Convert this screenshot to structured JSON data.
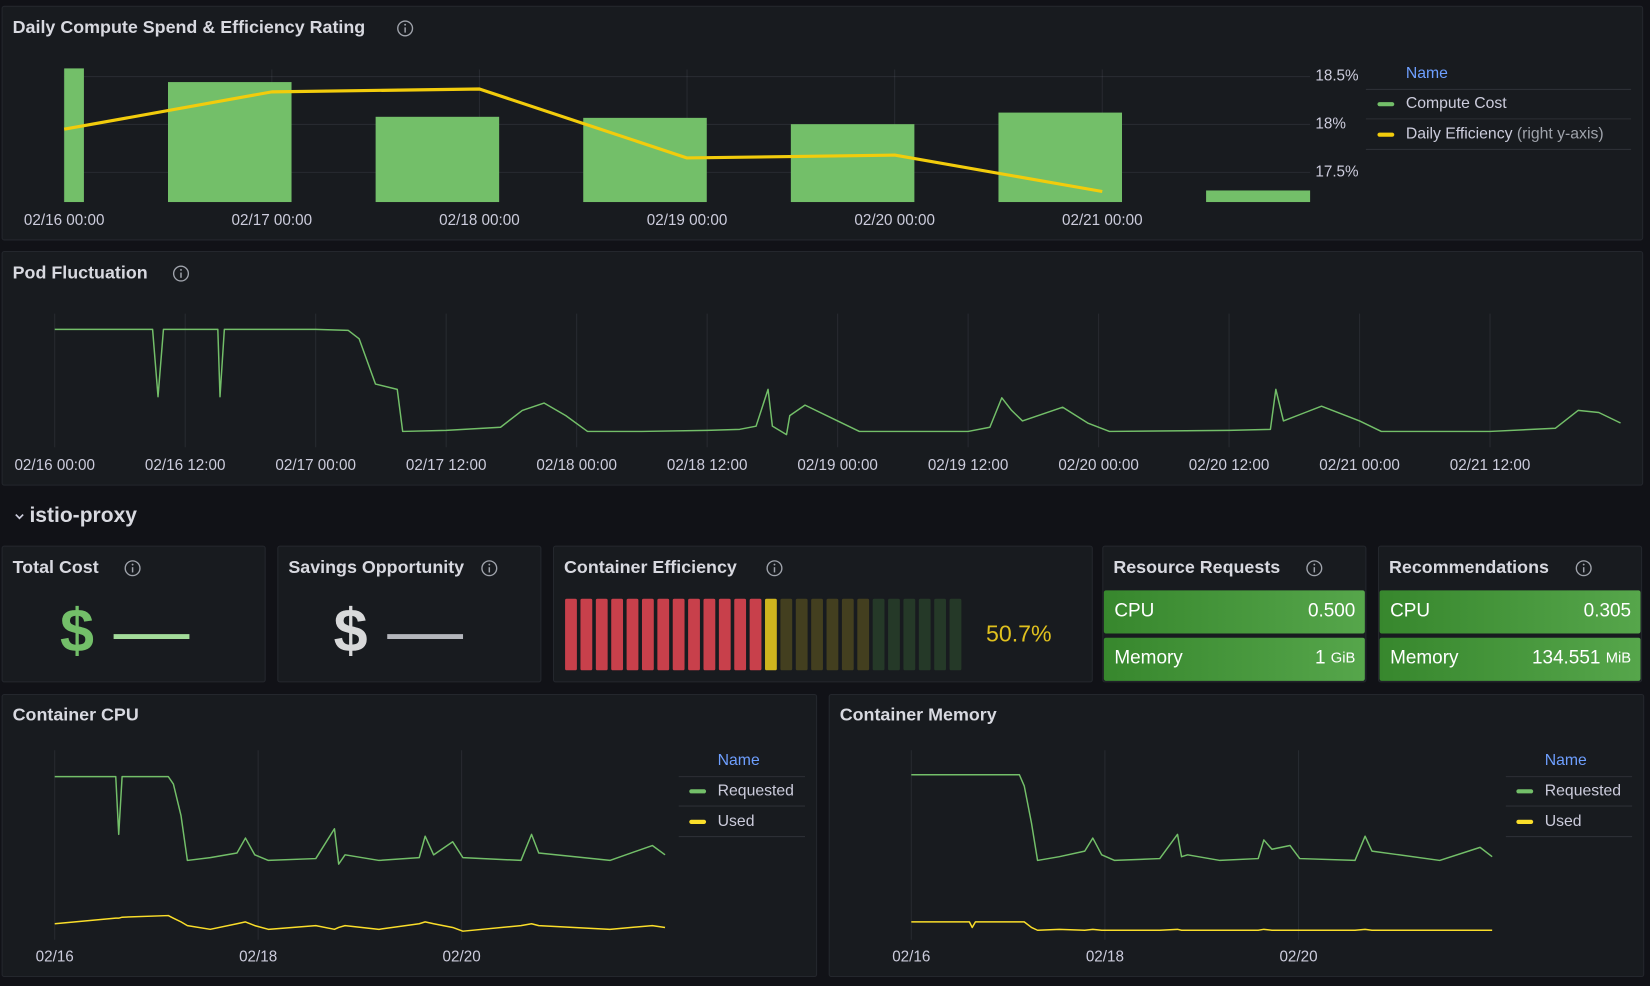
{
  "chart_data": [
    {
      "type": "bar",
      "title": "Daily Compute Spend & Efficiency Rating",
      "categories": [
        "02/16 00:00",
        "02/17 00:00",
        "02/18 00:00",
        "02/19 00:00",
        "02/20 00:00",
        "02/21 00:00",
        null
      ],
      "series": [
        {
          "name": "Compute Cost",
          "color": "#73bf69",
          "values": [
            127,
            114,
            81,
            80,
            74,
            85,
            11
          ]
        },
        {
          "name": "Daily Efficiency",
          "type": "line",
          "axis": "y2",
          "color": "#f2cc0c",
          "values": [
            17.95,
            18.34,
            18.37,
            17.65,
            17.68,
            17.3,
            null
          ]
        }
      ],
      "ylim": [
        0,
        132
      ],
      "y2lim": [
        17.19,
        18.64
      ],
      "y2ticks": [
        {
          "value": 18.5,
          "label": "18.5%"
        },
        {
          "value": 18,
          "label": "18%"
        },
        {
          "value": 17.5,
          "label": "17.5%"
        }
      ],
      "legend_title": "Name",
      "y2_legend_note": "(right y-axis)",
      "grid": true
    },
    {
      "type": "line",
      "title": "Pod Fluctuation",
      "color": "#73bf69",
      "x": [
        "02/16 00:00",
        "02/16 03:00",
        "02/16 06:00",
        "02/16 09:00",
        "02/16 09:30",
        "02/16 10:00",
        "02/16 15:00",
        "02/16 15:12",
        "02/16 15:36",
        "02/16 21:00",
        "02/17 00:00",
        "02/17 03:00",
        "02/17 04:00",
        "02/17 05:30",
        "02/17 07:30",
        "02/17 08:00",
        "02/17 12:00",
        "02/17 17:00",
        "02/17 19:00",
        "02/17 21:00",
        "02/17 23:00",
        "02/18 01:00",
        "02/18 06:00",
        "02/18 12:00",
        "02/18 15:00",
        "02/18 16:30",
        "02/18 17:36",
        "02/18 18:00",
        "02/18 19:18",
        "02/18 19:36",
        "02/18 21:00",
        "02/19 00:00",
        "02/19 02:00",
        "02/19 12:00",
        "02/19 14:00",
        "02/19 15:06",
        "02/19 16:00",
        "02/19 17:00",
        "02/19 20:42",
        "02/19 23:00",
        "02/20 01:00",
        "02/20 12:00",
        "02/20 15:48",
        "02/20 16:18",
        "02/20 17:00",
        "02/20 19:00",
        "02/20 20:30",
        "02/21 00:00",
        "02/21 02:00",
        "02/21 12:00",
        "02/21 18:00",
        "02/21 20:06",
        "02/21 22:00",
        "02/22 00:00"
      ],
      "values": [
        107,
        107,
        107,
        107,
        43,
        107,
        107,
        43,
        107,
        107,
        107,
        106,
        98,
        55,
        50,
        10,
        11,
        14,
        30,
        37,
        25,
        10,
        10,
        11,
        12,
        15,
        50,
        15,
        7,
        25,
        35,
        20,
        10,
        10,
        14,
        42,
        30,
        20,
        33,
        18,
        10,
        11,
        12,
        50,
        20,
        28,
        34,
        20,
        10,
        10,
        13,
        30,
        28,
        18
      ],
      "xlim": [
        "02/16 00:00",
        "02/22 00:00"
      ],
      "xticks": [
        "02/16 00:00",
        "02/16 12:00",
        "02/17 00:00",
        "02/17 12:00",
        "02/18 00:00",
        "02/18 12:00",
        "02/19 00:00",
        "02/19 12:00",
        "02/20 00:00",
        "02/20 12:00",
        "02/21 00:00",
        "02/21 12:00"
      ],
      "ylim": [
        0,
        120
      ],
      "grid": true
    },
    {
      "type": "line",
      "title": "Container CPU",
      "legend_title": "Name",
      "x": [
        "02/16 00:00",
        "02/16 14:24",
        "02/16 15:06",
        "02/16 15:54",
        "02/17 02:48",
        "02/17 04:00",
        "02/17 05:48",
        "02/17 07:18",
        "02/17 12:42",
        "02/17 19:00",
        "02/17 21:00",
        "02/17 23:12",
        "02/18 02:24",
        "02/18 13:36",
        "02/18 18:00",
        "02/18 19:00",
        "02/18 20:30",
        "02/19 04:30",
        "02/19 14:00",
        "02/19 15:24",
        "02/19 17:24",
        "02/19 21:54",
        "02/20 00:18",
        "02/20 14:00",
        "02/20 16:30",
        "02/20 18:12",
        "02/21 11:00",
        "02/21 21:00",
        "02/22 00:00"
      ],
      "series": [
        {
          "name": "Requested",
          "color": "#73bf69",
          "values": [
            87,
            87,
            56,
            87,
            87,
            83,
            66,
            42,
            43.5,
            46,
            54,
            45,
            42,
            43,
            59,
            40,
            45,
            42,
            43.5,
            55,
            45,
            52,
            43.5,
            42,
            56,
            46,
            42,
            50,
            45
          ]
        },
        {
          "name": "Used",
          "color": "#fade2a",
          "values": [
            8,
            11,
            11,
            11.5,
            12.4,
            11,
            9,
            7,
            5,
            8,
            9,
            7,
            5,
            7,
            5,
            6,
            7,
            5,
            8,
            9,
            8,
            6,
            4,
            7,
            8,
            7,
            5,
            7,
            6
          ]
        }
      ],
      "xlim": [
        "02/16 00:00",
        "02/22 00:00"
      ],
      "xticks": [
        {
          "value": "02/16 00:00",
          "label": "02/16"
        },
        {
          "value": "02/18 00:00",
          "label": "02/18"
        },
        {
          "value": "02/20 00:00",
          "label": "02/20"
        }
      ],
      "ylim": [
        0,
        100
      ],
      "grid": true
    },
    {
      "type": "line",
      "title": "Container Memory",
      "legend_title": "Name",
      "x": [
        "02/16 00:00",
        "02/16 14:24",
        "02/16 15:06",
        "02/16 15:54",
        "02/17 02:48",
        "02/17 04:00",
        "02/17 05:48",
        "02/17 07:18",
        "02/17 12:42",
        "02/17 19:00",
        "02/17 21:00",
        "02/17 23:12",
        "02/18 02:24",
        "02/18 13:36",
        "02/18 18:00",
        "02/18 19:00",
        "02/18 20:30",
        "02/19 04:30",
        "02/19 14:00",
        "02/19 15:24",
        "02/19 17:24",
        "02/19 21:54",
        "02/20 00:18",
        "02/20 14:00",
        "02/20 16:30",
        "02/20 18:12",
        "02/21 11:00",
        "02/21 21:00",
        "02/22 00:00"
      ],
      "series": [
        {
          "name": "Requested",
          "color": "#73bf69",
          "values": [
            88,
            88,
            88,
            88,
            88,
            82,
            62,
            42,
            44,
            47,
            54,
            45,
            42,
            43,
            56,
            44,
            45,
            42,
            43,
            53,
            48,
            50,
            43,
            42,
            55,
            47,
            42,
            49,
            44
          ]
        },
        {
          "name": "Used",
          "color": "#fade2a",
          "values": [
            9,
            9,
            6,
            9,
            9,
            9,
            6,
            4.5,
            5,
            4.5,
            5,
            4.5,
            4.5,
            4.5,
            5,
            4.5,
            4.5,
            4.5,
            4.5,
            5,
            4.5,
            4.5,
            4.5,
            4.5,
            5,
            4.5,
            4.5,
            4.5,
            4.5
          ]
        }
      ],
      "xlim": [
        "02/16 00:00",
        "02/22 00:00"
      ],
      "xticks": [
        {
          "value": "02/16 00:00",
          "label": "02/16"
        },
        {
          "value": "02/18 00:00",
          "label": "02/18"
        },
        {
          "value": "02/20 00:00",
          "label": "02/20"
        }
      ],
      "ylim": [
        0,
        100
      ],
      "grid": true
    }
  ],
  "section": {
    "title": "istio-proxy"
  },
  "stat_panels": [
    {
      "title": "Total Cost",
      "prefix": "$",
      "value": "—",
      "prefix_color": "#73bf69",
      "value_color": "#a3dc9a"
    },
    {
      "title": "Savings Opportunity",
      "prefix": "$",
      "value": "—",
      "prefix_color": "#d8d9da",
      "value_color": "#b4b6bc"
    },
    {
      "title": "Container Efficiency",
      "type": "bar_gauge",
      "value": 50.7,
      "value_label": "50.7%",
      "range": [
        0,
        100
      ],
      "thresholds": [
        {
          "value": 0,
          "color": "#d8434f"
        },
        {
          "value": 50,
          "color": "#e0c11e"
        },
        {
          "value": 75,
          "color": "#56a64b"
        }
      ]
    },
    {
      "title": "Resource Requests",
      "rows": [
        {
          "name": "CPU",
          "value": 0.5,
          "value_label": "0.500"
        },
        {
          "name": "Memory",
          "value": 1,
          "unit": "GiB"
        }
      ]
    },
    {
      "title": "Recommendations",
      "rows": [
        {
          "name": "CPU",
          "value": 0.305
        },
        {
          "name": "Memory",
          "value": 134.551,
          "unit": "MiB"
        }
      ]
    }
  ]
}
